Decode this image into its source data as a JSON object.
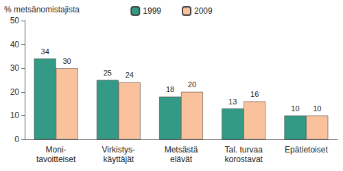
{
  "chart_data": {
    "type": "bar",
    "y_label": "% metsänomistajista",
    "categories": [
      "Moni-\ntavoitteiset",
      "Virkistys-\nkäyttäjät",
      "Metsästä\nelävät",
      "Tal. turvaa\nkorostavat",
      "Epätietoiset"
    ],
    "series": [
      {
        "name": "1999",
        "color": "#339a85",
        "values": [
          34,
          25,
          18,
          13,
          10
        ]
      },
      {
        "name": "2009",
        "color": "#f9c29c",
        "values": [
          30,
          24,
          20,
          16,
          10
        ]
      }
    ],
    "ylim": [
      0,
      50
    ],
    "yticks": [
      0,
      10,
      20,
      30,
      40,
      50
    ],
    "grid": false,
    "legend": "top",
    "data_labels": true
  }
}
